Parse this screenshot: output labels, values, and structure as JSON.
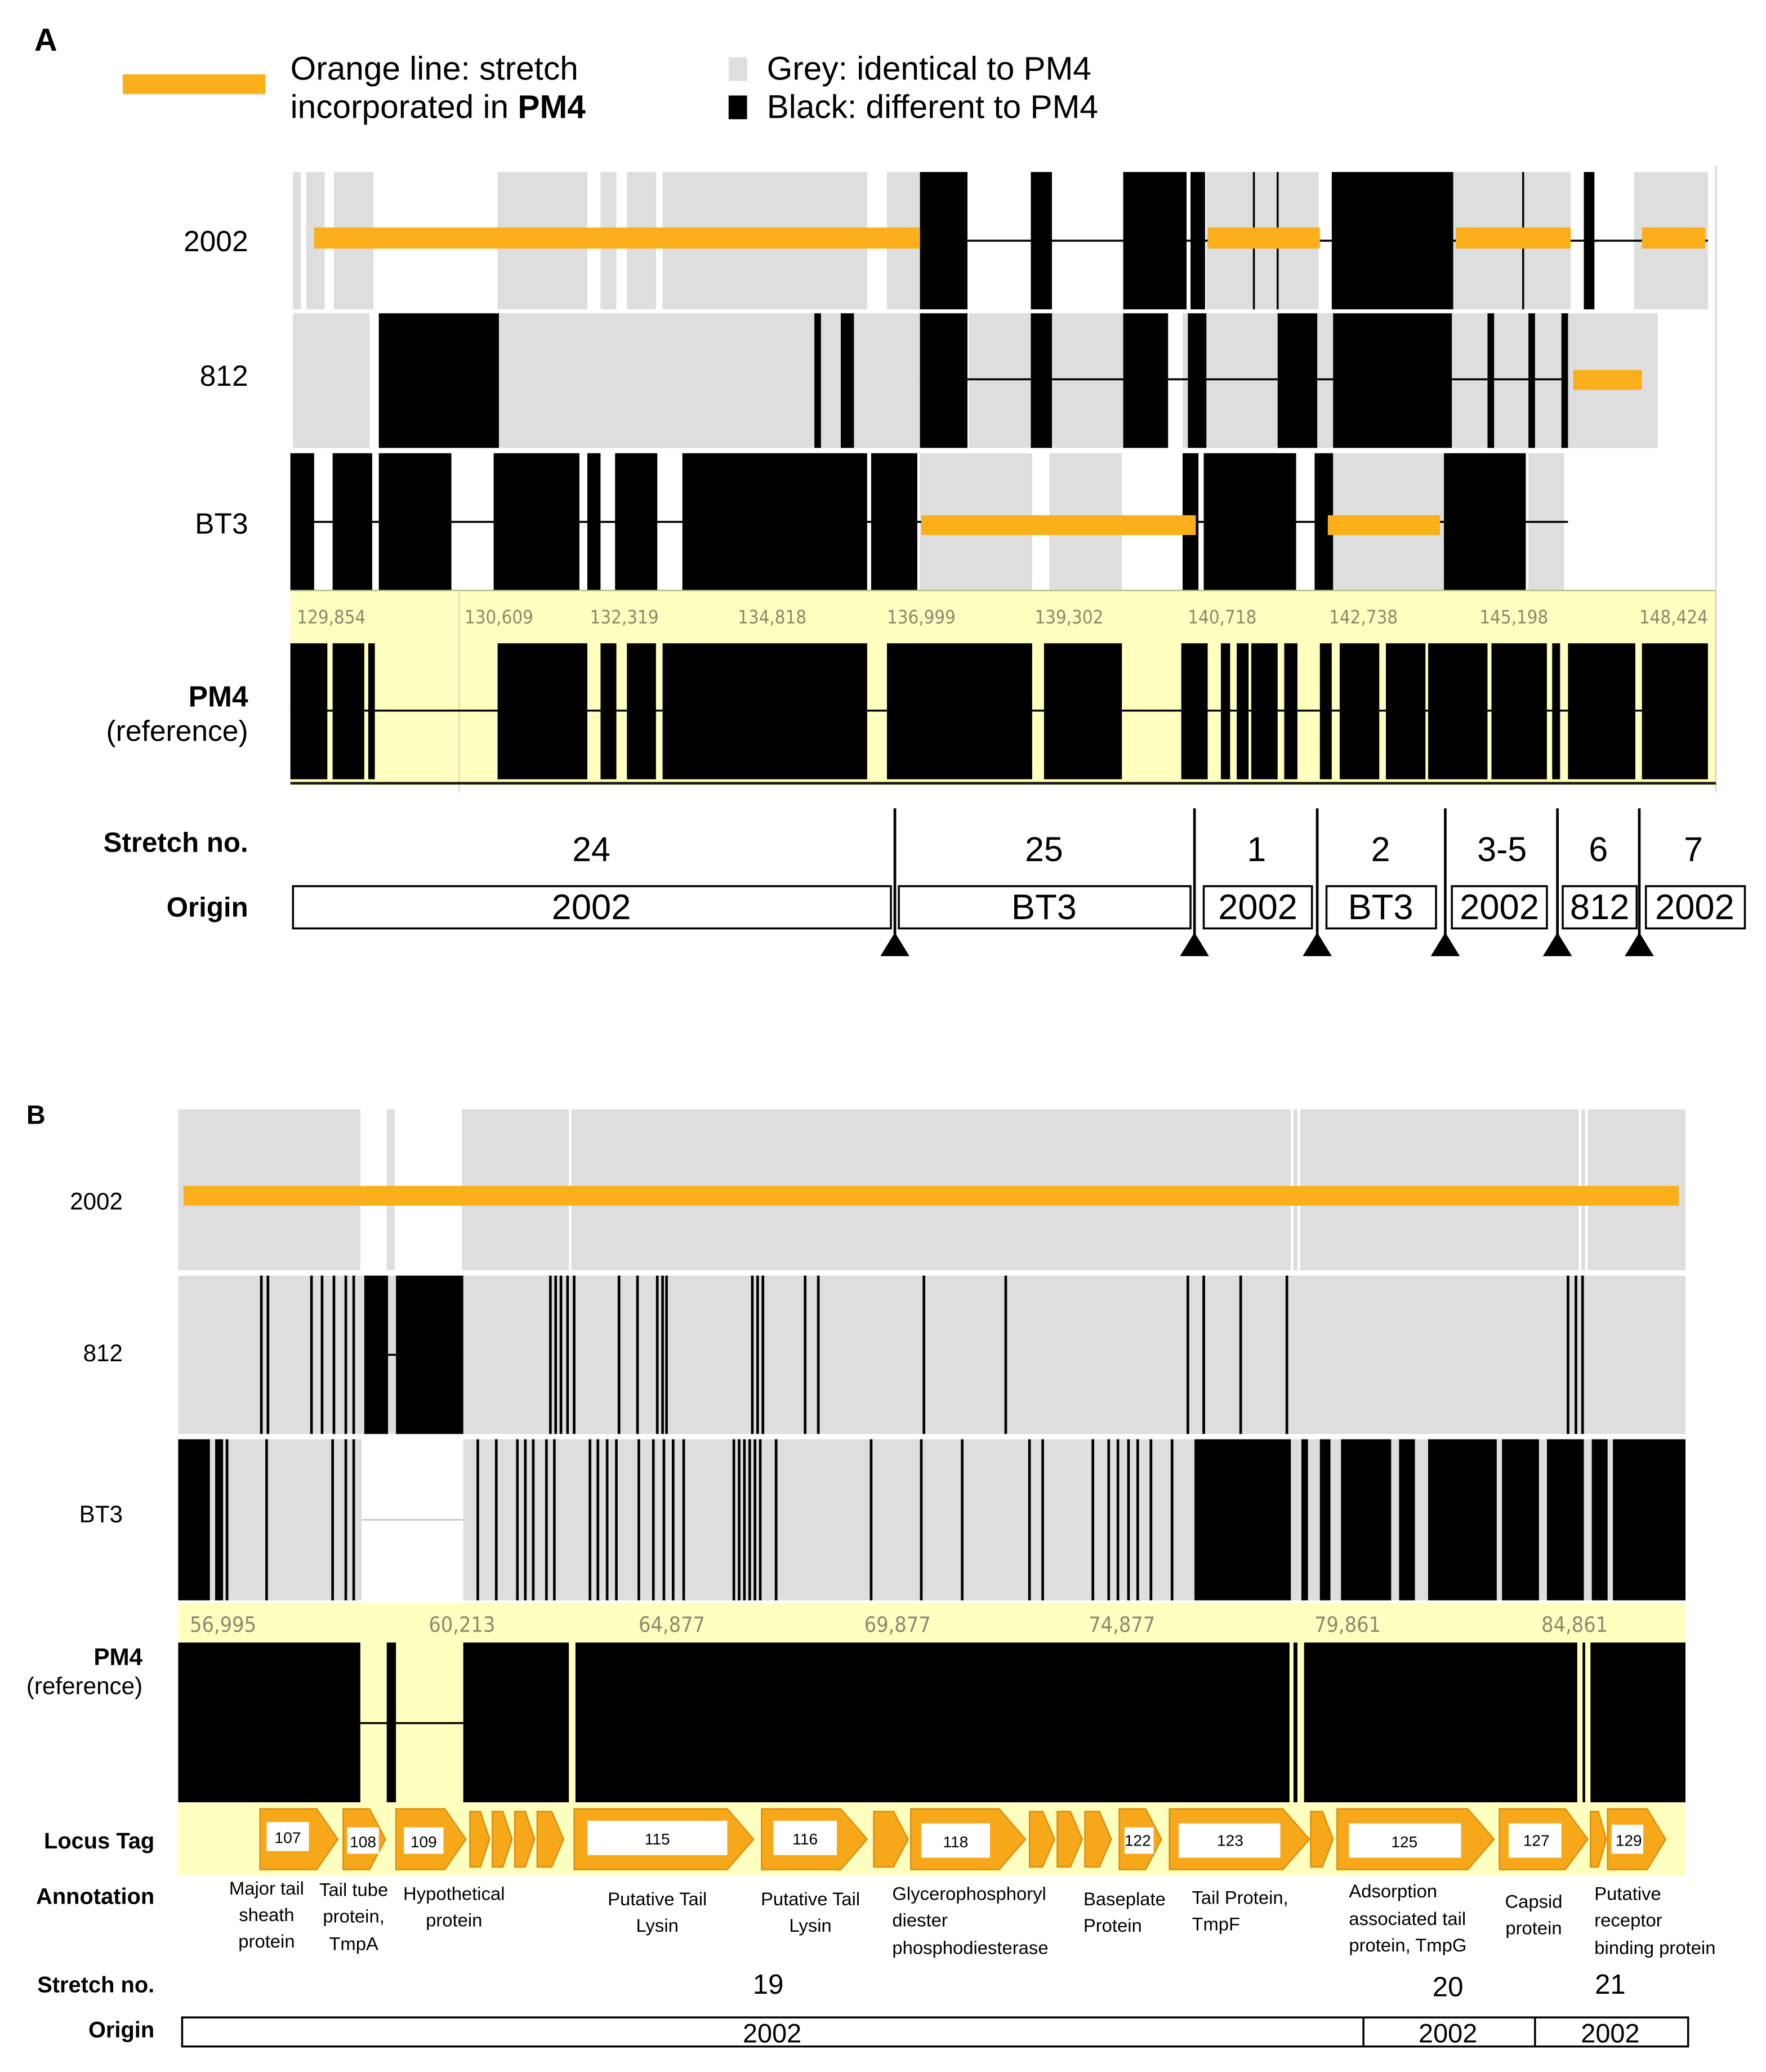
{
  "panelA": {
    "label": "A",
    "legend": {
      "orange_line1": "Orange line: stretch",
      "orange_line2_prefix": "incorporated in ",
      "orange_line2_bold": "PM4",
      "grey": "Grey: identical to PM4",
      "black": "Black: different to PM4"
    },
    "tracks": [
      "2002",
      "812",
      "BT3"
    ],
    "reference_label": "PM4",
    "reference_sub": "(reference)",
    "ruler": [
      "129,854",
      "130,609",
      "132,319",
      "134,818",
      "136,999",
      "139,302",
      "140,718",
      "142,738",
      "145,198",
      "148,424"
    ],
    "stretch_label": "Stretch no.",
    "origin_label": "Origin",
    "stretches": [
      {
        "no": "24",
        "origin": "2002"
      },
      {
        "no": "25",
        "origin": "BT3"
      },
      {
        "no": "1",
        "origin": "2002"
      },
      {
        "no": "2",
        "origin": "BT3"
      },
      {
        "no": "3-5",
        "origin": "2002"
      },
      {
        "no": "6",
        "origin": "812"
      },
      {
        "no": "7",
        "origin": "2002"
      }
    ]
  },
  "panelB": {
    "label": "B",
    "tracks": [
      "2002",
      "812",
      "BT3"
    ],
    "reference_label": "PM4",
    "reference_sub": "(reference)",
    "ruler": [
      "56,995",
      "60,213",
      "64,877",
      "69,877",
      "74,877",
      "79,861",
      "84,861"
    ],
    "locus_label": "Locus Tag",
    "annotation_label": "Annotation",
    "stretch_label": "Stretch no.",
    "origin_label": "Origin",
    "loci": [
      "107",
      "108",
      "109",
      "115",
      "116",
      "118",
      "122",
      "123",
      "125",
      "127",
      "129"
    ],
    "annotations": [
      [
        "Major tail",
        "sheath",
        "protein"
      ],
      [
        "Tail tube",
        "protein,",
        "TmpA"
      ],
      [
        "Hypothetical",
        "protein"
      ],
      [
        "Putative Tail",
        "Lysin"
      ],
      [
        "Putative Tail",
        "Lysin"
      ],
      [
        "Glycerophosphoryl",
        "diester",
        "phosphodiesterase"
      ],
      [
        "Baseplate",
        "Protein"
      ],
      [
        "Tail Protein,",
        "TmpF"
      ],
      [
        "Adsorption",
        "associated tail",
        "protein, TmpG"
      ],
      [
        "Capsid",
        "protein"
      ],
      [
        "Putative",
        "receptor",
        "binding protein"
      ]
    ],
    "stretches": [
      {
        "no": "19",
        "origin": "2002"
      },
      {
        "no": "20",
        "origin": "2002"
      },
      {
        "no": "21",
        "origin": "2002"
      }
    ]
  },
  "colors": {
    "orange": "#fbb01b",
    "grey": "#dedede",
    "black": "#000000",
    "ruler_bg": "#ffffc0",
    "arrow": "#f7a81a"
  }
}
